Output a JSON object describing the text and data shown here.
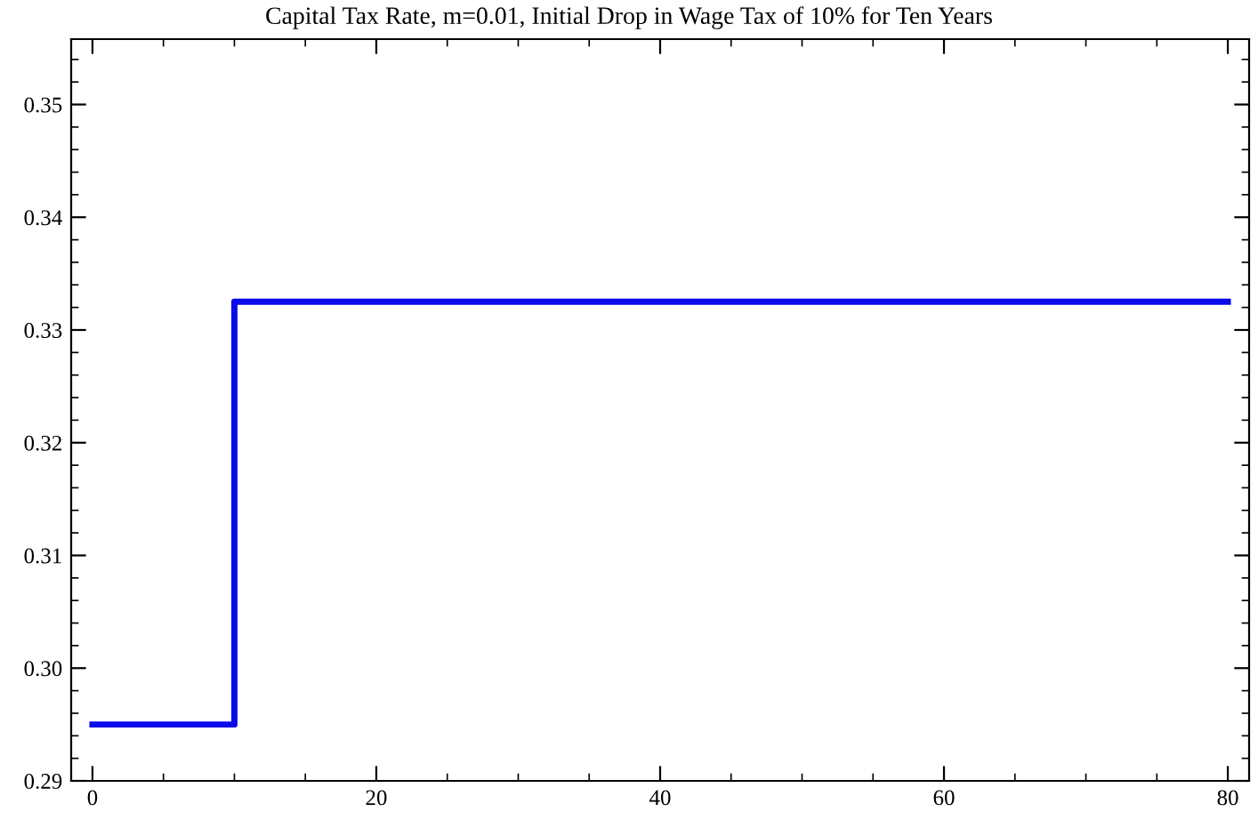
{
  "chart_data": {
    "type": "step",
    "title": "Capital Tax Rate, m=0.01, Initial Drop in Wage Tax of 10% for Ten Years",
    "x": [
      0,
      10,
      80
    ],
    "series": [
      {
        "color": "#0a0aeb",
        "values": [
          0.295,
          0.3325,
          0.3325
        ]
      }
    ],
    "xlim": [
      -1.5,
      81.5
    ],
    "xticks": [
      0,
      20,
      40,
      60,
      80
    ],
    "ylim": [
      0.29,
      0.3558
    ],
    "yticks": [
      {
        "value": 0.29,
        "label": "0.29"
      },
      {
        "value": 0.3,
        "label": "0.30"
      },
      {
        "value": 0.31,
        "label": "0.31"
      },
      {
        "value": 0.32,
        "label": "0.32"
      },
      {
        "value": 0.33,
        "label": "0.33"
      },
      {
        "value": 0.34,
        "label": "0.34"
      },
      {
        "value": 0.35,
        "label": "0.35"
      }
    ],
    "grid": false,
    "legend": false,
    "marker": "none",
    "line_style": "solid"
  }
}
